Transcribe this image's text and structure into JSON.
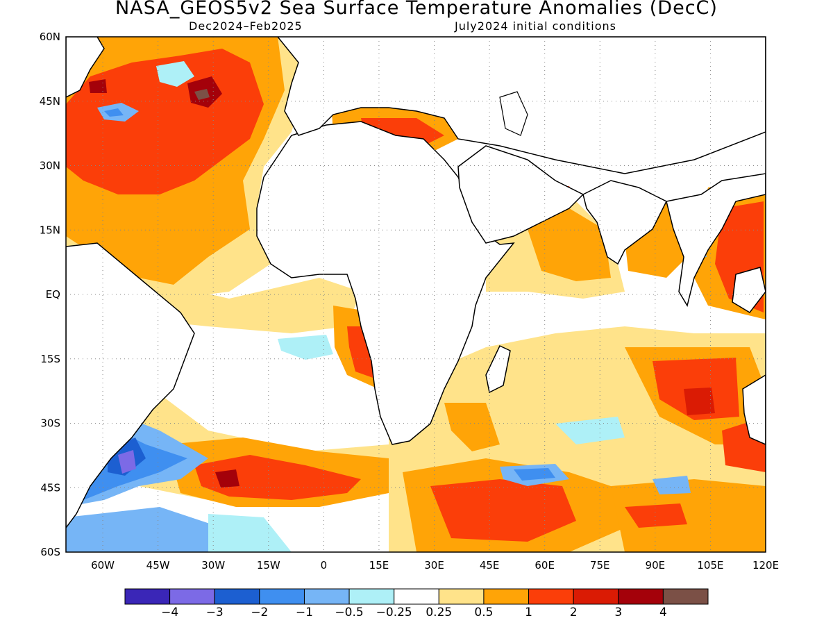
{
  "title": "NASA_GEOS5v2 Sea Surface Temperature Anomalies (DecC)",
  "subtitle_left": "Dec2024–Feb2025",
  "subtitle_right": "July2024 initial conditions",
  "map": {
    "lon_range": [
      -70,
      120
    ],
    "lat_range": [
      -60,
      60
    ],
    "lat_labels": [
      "60N",
      "45N",
      "30N",
      "15N",
      "EQ",
      "15S",
      "30S",
      "45S",
      "60S"
    ],
    "lon_labels": [
      "60W",
      "45W",
      "30W",
      "15W",
      "0",
      "15E",
      "30E",
      "45E",
      "60E",
      "75E",
      "90E",
      "105E",
      "120E"
    ],
    "grid": "dotted"
  },
  "colorbar": {
    "colors": [
      "#3a26b7",
      "#7c6ae6",
      "#1c5fd1",
      "#3f8ff0",
      "#76b5f6",
      "#aef0f7",
      "#ffffff",
      "#ffe38a",
      "#ffa407",
      "#fb3e09",
      "#da1b04",
      "#a4010a",
      "#7b5046"
    ],
    "labels": [
      "−4",
      "−3",
      "−2",
      "−1",
      "−0.5",
      "−0.25",
      "0.25",
      "0.5",
      "1",
      "2",
      "3",
      "4"
    ]
  }
}
